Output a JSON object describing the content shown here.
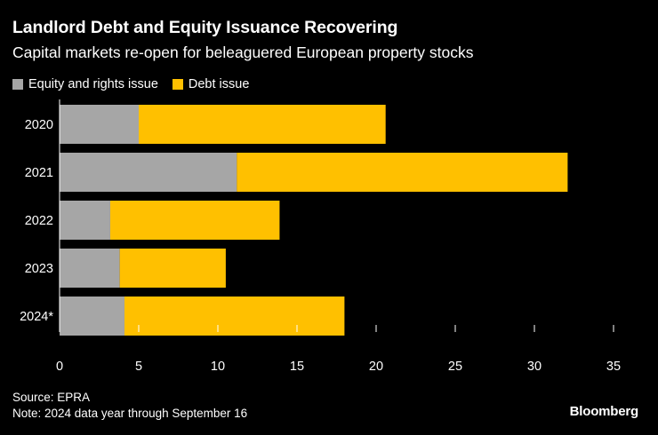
{
  "chart_data": {
    "type": "bar",
    "orientation": "horizontal",
    "stacked": true,
    "title": "Landlord Debt and Equity Issuance Recovering",
    "subtitle": "Capital markets re-open for beleaguered European property stocks",
    "categories": [
      "2020",
      "2021",
      "2022",
      "2023",
      "2024*"
    ],
    "series": [
      {
        "name": "Equity and rights issue",
        "color": "#a6a6a6",
        "values": [
          5.0,
          11.2,
          3.2,
          3.8,
          4.1
        ]
      },
      {
        "name": "Debt issue",
        "color": "#ffc000",
        "values": [
          15.6,
          20.9,
          10.7,
          6.7,
          13.9
        ]
      }
    ],
    "x_ticks": [
      "0",
      "5",
      "10",
      "15",
      "20",
      "25",
      "30",
      "35"
    ],
    "xlim": [
      0,
      35
    ],
    "xlabel": "",
    "ylabel": "",
    "legend_position": "top-left",
    "grid": false
  },
  "footer": {
    "source": "Source: EPRA",
    "note": "Note: 2024 data year through September 16",
    "brand": "Bloomberg"
  },
  "colors": {
    "background": "#000000",
    "text": "#ffffff",
    "equity": "#a6a6a6",
    "debt": "#ffc000",
    "axis": "#ffffff"
  }
}
